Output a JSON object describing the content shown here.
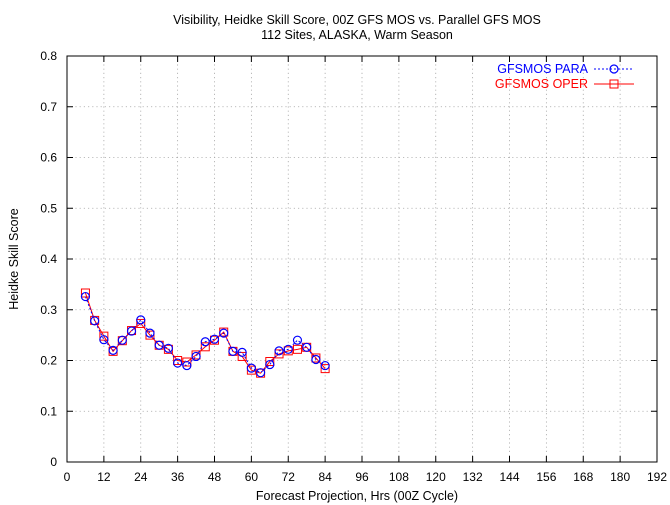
{
  "chart_data": {
    "type": "line",
    "title": "Visibility, Heidke Skill Score, 00Z GFS MOS vs. Parallel GFS MOS",
    "subtitle": "112 Sites, ALASKA, Warm Season",
    "xlabel": "Forecast Projection, Hrs (00Z Cycle)",
    "ylabel": "Heidke Skill Score",
    "xlim": [
      0,
      192
    ],
    "ylim": [
      0,
      0.8
    ],
    "xticks": [
      0,
      12,
      24,
      36,
      48,
      60,
      72,
      84,
      96,
      108,
      120,
      132,
      144,
      156,
      168,
      180,
      192
    ],
    "yticks": [
      0,
      0.1,
      0.2,
      0.3,
      0.4,
      0.5,
      0.6,
      0.7,
      0.8
    ],
    "grid": true,
    "legend_position": "top-right",
    "x": [
      6,
      9,
      12,
      15,
      18,
      21,
      24,
      27,
      30,
      33,
      36,
      39,
      42,
      45,
      48,
      51,
      54,
      57,
      60,
      63,
      66,
      69,
      72,
      75,
      78,
      81,
      84
    ],
    "series": [
      {
        "name": "GFSMOS PARA",
        "color": "#0000ff",
        "line_style": "dotted",
        "marker": "circle",
        "values": [
          0.326,
          0.278,
          0.241,
          0.22,
          0.24,
          0.258,
          0.28,
          0.254,
          0.23,
          0.224,
          0.195,
          0.19,
          0.208,
          0.237,
          0.242,
          0.254,
          0.218,
          0.216,
          0.185,
          0.176,
          0.192,
          0.219,
          0.222,
          0.24,
          0.226,
          0.202,
          0.19
        ]
      },
      {
        "name": "GFSMOS OPER",
        "color": "#ff0000",
        "line_style": "solid",
        "marker": "square",
        "values": [
          0.333,
          0.279,
          0.248,
          0.218,
          0.239,
          0.259,
          0.273,
          0.25,
          0.23,
          0.222,
          0.2,
          0.197,
          0.211,
          0.227,
          0.24,
          0.256,
          0.218,
          0.208,
          0.181,
          0.175,
          0.198,
          0.213,
          0.219,
          0.222,
          0.226,
          0.205,
          0.184
        ]
      }
    ]
  }
}
